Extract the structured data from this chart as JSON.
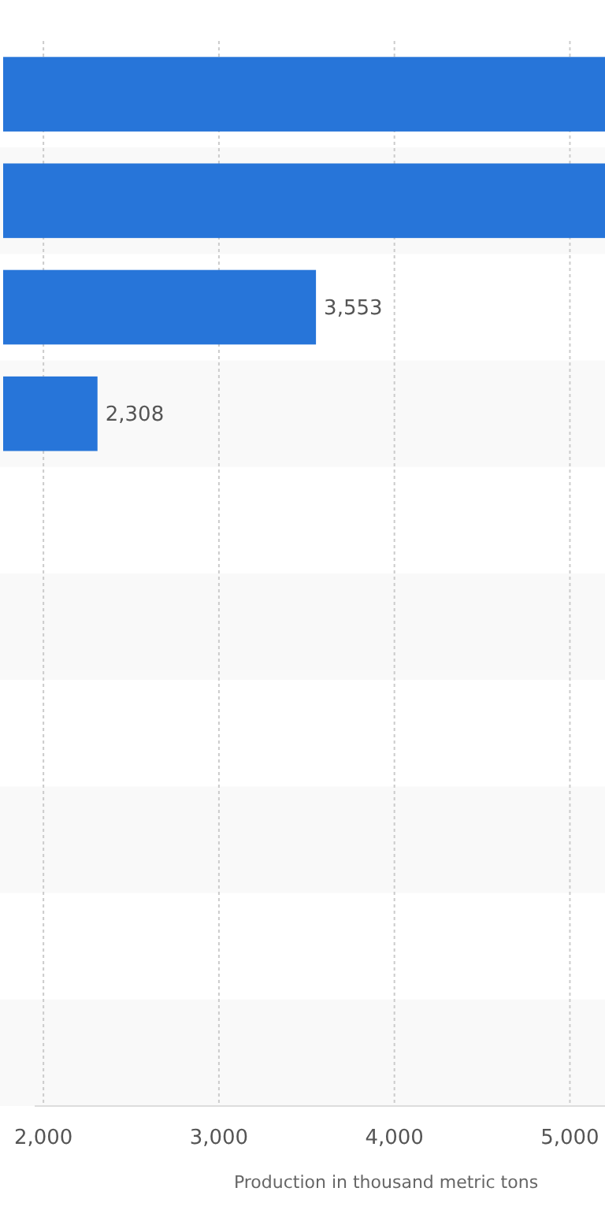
{
  "chart_data": {
    "type": "bar",
    "orientation": "horizontal",
    "xlabel": "Production in thousand metric tons",
    "categories": [
      null,
      null,
      null,
      null,
      null,
      null,
      null,
      null,
      null,
      null
    ],
    "values": [
      5200,
      5200,
      3553,
      2308,
      null,
      null,
      null,
      null,
      null,
      null
    ],
    "value_labels": [
      null,
      null,
      "3,553",
      "2,308",
      null,
      null,
      null,
      null,
      null,
      null
    ],
    "color": "#2775d9",
    "xlim": [
      1950,
      5200
    ],
    "xticks": [
      {
        "value": 2000,
        "label": "2,000"
      },
      {
        "value": 3000,
        "label": "3,000"
      },
      {
        "value": 4000,
        "label": "4,000"
      },
      {
        "value": 5000,
        "label": "5,000"
      }
    ],
    "grid": "x"
  }
}
